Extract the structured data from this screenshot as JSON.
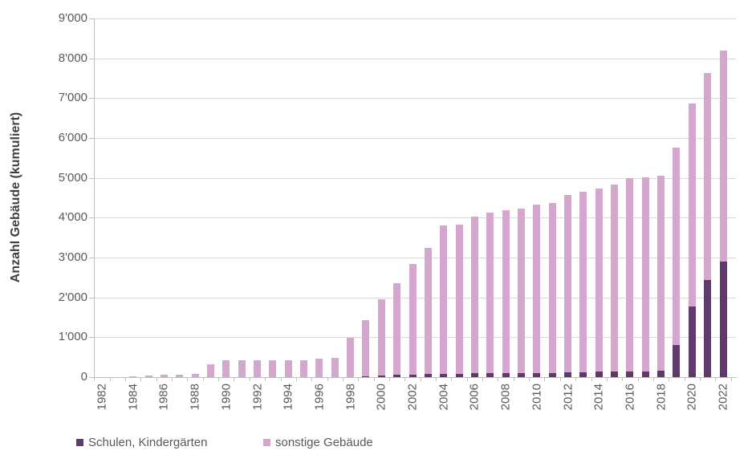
{
  "chart_data": {
    "type": "bar",
    "stacked": true,
    "title": "",
    "xlabel": "",
    "ylabel": "Anzahl Gebäude (kumuliert)",
    "ylim": [
      0,
      9000
    ],
    "y_tick_step": 1000,
    "y_tick_labels": [
      "0",
      "1'000",
      "2'000",
      "3'000",
      "4'000",
      "5'000",
      "6'000",
      "7'000",
      "8'000",
      "9'000"
    ],
    "grid": true,
    "legend_position": "bottom-left",
    "years": [
      1982,
      1983,
      1984,
      1985,
      1986,
      1987,
      1988,
      1989,
      1990,
      1991,
      1992,
      1993,
      1994,
      1995,
      1996,
      1997,
      1998,
      1999,
      2000,
      2001,
      2002,
      2003,
      2004,
      2005,
      2006,
      2007,
      2008,
      2009,
      2010,
      2011,
      2012,
      2013,
      2014,
      2015,
      2016,
      2017,
      2018,
      2019,
      2020,
      2021,
      2022
    ],
    "x_tick_labels": [
      "1982",
      "1984",
      "1986",
      "1988",
      "1990",
      "1992",
      "1994",
      "1996",
      "1998",
      "2000",
      "2002",
      "2004",
      "2006",
      "2008",
      "2010",
      "2012",
      "2014",
      "2016",
      "2018",
      "2020",
      "2022"
    ],
    "series": [
      {
        "name": "Schulen, Kindergärten",
        "color": "#5F3A6E",
        "values": [
          0,
          0,
          0,
          0,
          0,
          0,
          0,
          0,
          0,
          0,
          0,
          0,
          0,
          0,
          0,
          0,
          10,
          20,
          40,
          55,
          70,
          80,
          85,
          90,
          95,
          100,
          100,
          105,
          105,
          110,
          120,
          130,
          140,
          140,
          145,
          150,
          155,
          800,
          1770,
          2430,
          2900
        ]
      },
      {
        "name": "sonstige Gebäude",
        "color": "#D5A6CE",
        "values": [
          5,
          10,
          25,
          35,
          60,
          65,
          85,
          320,
          430,
          430,
          430,
          430,
          430,
          420,
          465,
          490,
          980,
          1410,
          1910,
          2295,
          2760,
          3160,
          3715,
          3730,
          3935,
          4020,
          4080,
          4125,
          4225,
          4260,
          4460,
          4520,
          4590,
          4700,
          4845,
          4860,
          4905,
          4960,
          5090,
          5200,
          5300
        ]
      }
    ],
    "totals": [
      5,
      10,
      25,
      35,
      60,
      65,
      85,
      320,
      430,
      430,
      430,
      430,
      430,
      420,
      465,
      490,
      990,
      1430,
      1950,
      2350,
      2830,
      3240,
      3800,
      3820,
      4030,
      4120,
      4180,
      4230,
      4330,
      4370,
      4580,
      4650,
      4730,
      4840,
      4990,
      5010,
      5060,
      5760,
      6860,
      7630,
      8200
    ]
  },
  "colors": {
    "schulen": "#5F3A6E",
    "sonstige": "#D5A6CE",
    "gridline": "#D9D9D9",
    "axis": "#BFBFBF",
    "tick_label": "#595959",
    "axis_title": "#404040",
    "background": "#FFFFFF"
  }
}
